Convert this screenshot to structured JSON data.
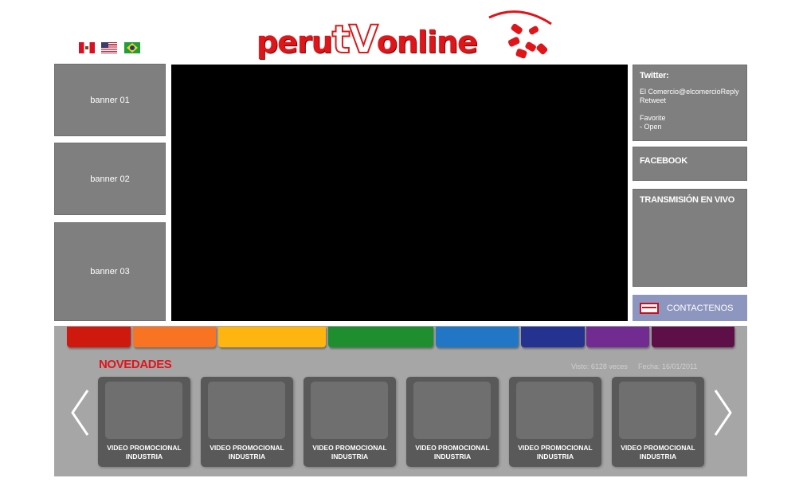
{
  "header": {
    "logo": {
      "part1": "peru",
      "part2": "tV",
      "part3": "online"
    },
    "flags": [
      {
        "name": "peru-flag-icon"
      },
      {
        "name": "usa-flag-icon"
      },
      {
        "name": "brazil-flag-icon"
      }
    ]
  },
  "banners": [
    "banner 01",
    "banner 02",
    "banner 03"
  ],
  "sidebar": {
    "twitter_title": "Twitter:",
    "twitter_lines": [
      "El Comercio@elcomercioReply",
      "Retweet",
      "",
      "Favorite",
      "- Open"
    ],
    "facebook_title": "FACEBOOK",
    "live_title": "TRANSMISIÓN EN VIVO",
    "contact_label": "CONTACTENOS"
  },
  "colors": {
    "tabs": [
      "#d0190e",
      "#f97422",
      "#ffb50f",
      "#1f8e2e",
      "#2177c6",
      "#263290",
      "#712b91",
      "#5e0f47"
    ],
    "accent": "#e0151a",
    "contact_bg": "#8d96be"
  },
  "novedades": {
    "title": "NOVEDADES",
    "views": "Visto: 6128 veces",
    "date": "Fecha: 16/01/2011",
    "cards": [
      {
        "line1": "VIDEO PROMOCIONAL",
        "line2": "INDUSTRIA"
      },
      {
        "line1": "VIDEO PROMOCIONAL",
        "line2": "INDUSTRIA"
      },
      {
        "line1": "VIDEO PROMOCIONAL",
        "line2": "INDUSTRIA"
      },
      {
        "line1": "VIDEO PROMOCIONAL",
        "line2": "INDUSTRIA"
      },
      {
        "line1": "VIDEO PROMOCIONAL",
        "line2": "INDUSTRIA"
      },
      {
        "line1": "VIDEO PROMOCIONAL",
        "line2": "INDUSTRIA"
      }
    ],
    "prev_icon": "chevron-left-icon",
    "next_icon": "chevron-right-icon"
  }
}
